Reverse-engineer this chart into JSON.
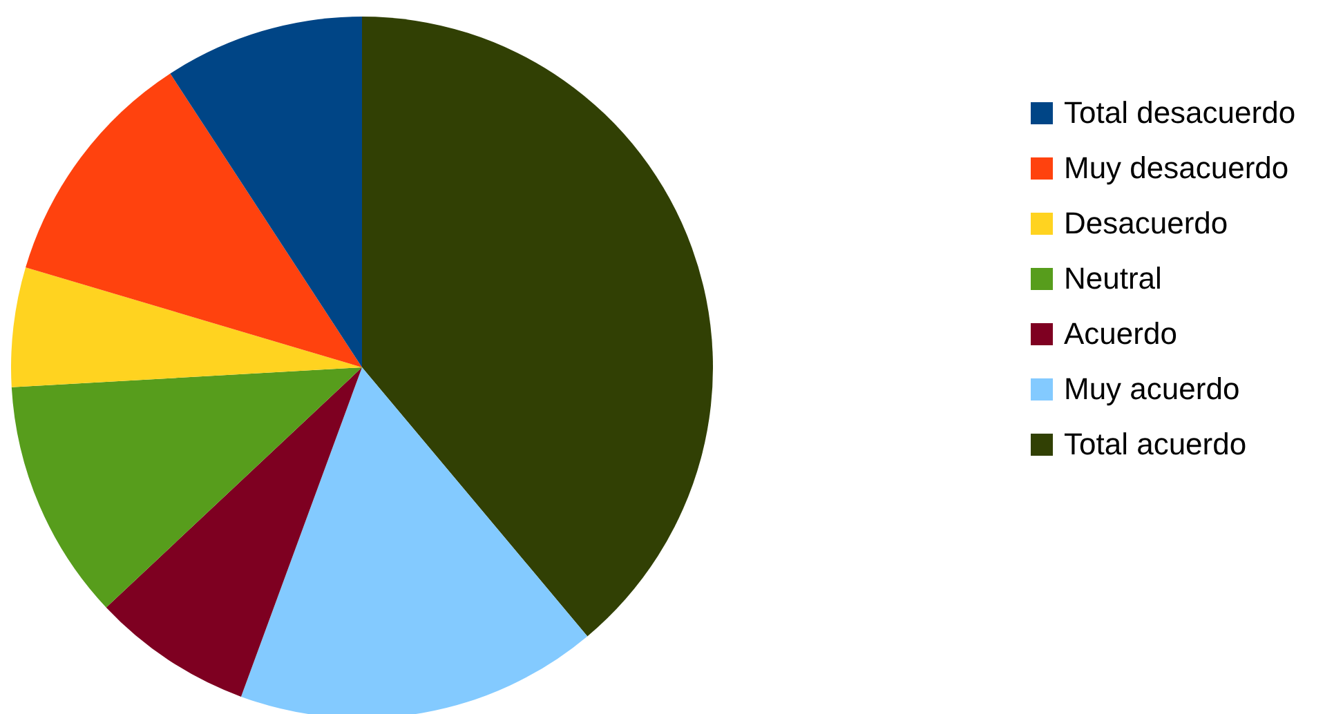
{
  "chart_data": {
    "type": "pie",
    "categories": [
      "Total desacuerdo",
      "Muy desacuerdo",
      "Desacuerdo",
      "Neutral",
      "Acuerdo",
      "Muy acuerdo",
      "Total acuerdo"
    ],
    "values": [
      9.2,
      11.2,
      5.5,
      11.1,
      7.4,
      16.7,
      38.9
    ],
    "colors": [
      "#004586",
      "#ff420e",
      "#ffd320",
      "#579d1c",
      "#7e0021",
      "#83caff",
      "#314004"
    ],
    "legend": "right"
  }
}
